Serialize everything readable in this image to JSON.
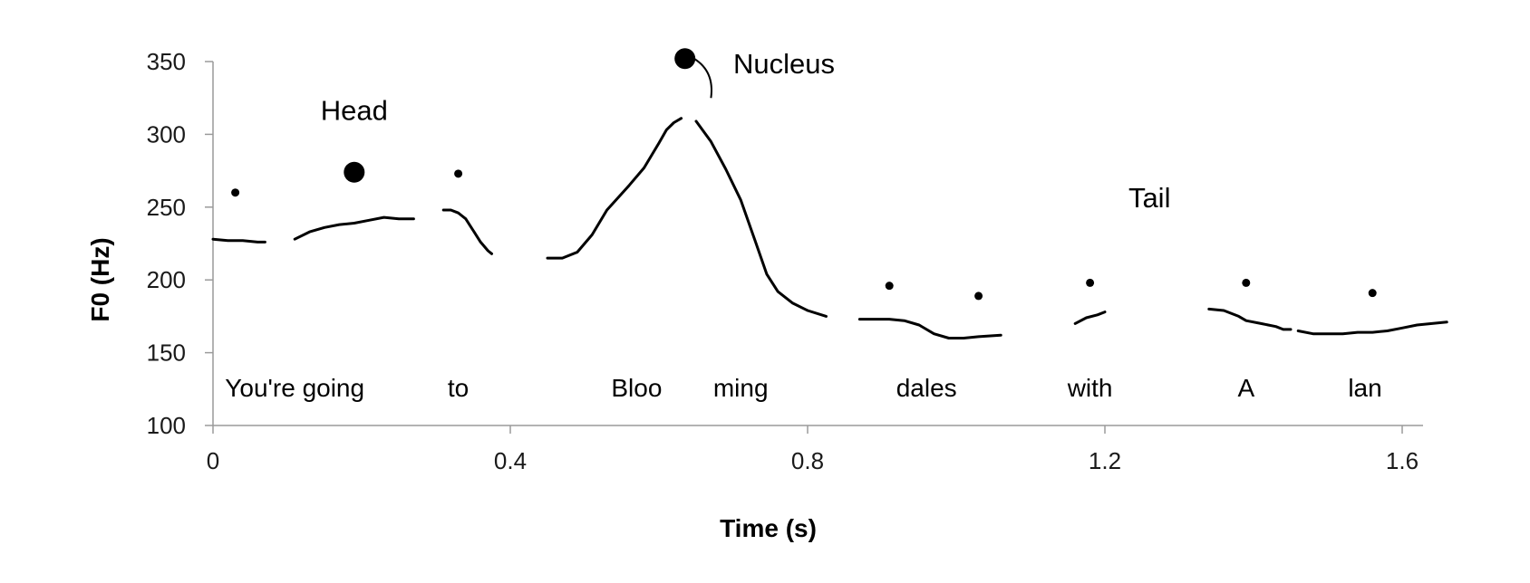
{
  "chart_data": {
    "type": "line",
    "title": "",
    "xlabel": "Time (s)",
    "ylabel": "F0 (Hz)",
    "xlim": [
      0,
      1.7
    ],
    "ylim": [
      100,
      350
    ],
    "x_ticks": [
      0,
      0.4,
      0.8,
      1.2,
      1.6
    ],
    "x_tick_labels": [
      "0",
      "0.4",
      "0.8",
      "1.2",
      "1.6"
    ],
    "y_ticks": [
      100,
      150,
      200,
      250,
      300,
      350
    ],
    "y_tick_labels": [
      "100",
      "150",
      "200",
      "250",
      "300",
      "350"
    ],
    "grid": false,
    "legend": "none",
    "color": "#000000",
    "series": [
      {
        "points": [
          [
            0.0,
            228
          ],
          [
            0.02,
            227
          ],
          [
            0.04,
            227
          ],
          [
            0.06,
            226
          ],
          [
            0.07,
            226
          ]
        ]
      },
      {
        "points": [
          [
            0.11,
            228
          ],
          [
            0.13,
            233
          ],
          [
            0.15,
            236
          ],
          [
            0.17,
            238
          ],
          [
            0.19,
            239
          ],
          [
            0.21,
            241
          ],
          [
            0.23,
            243
          ],
          [
            0.25,
            242
          ],
          [
            0.27,
            242
          ]
        ]
      },
      {
        "points": [
          [
            0.31,
            248
          ],
          [
            0.32,
            248
          ],
          [
            0.33,
            246
          ],
          [
            0.34,
            242
          ],
          [
            0.35,
            234
          ],
          [
            0.36,
            226
          ],
          [
            0.37,
            220
          ],
          [
            0.375,
            218
          ]
        ]
      },
      {
        "points": [
          [
            0.45,
            215
          ],
          [
            0.47,
            215
          ],
          [
            0.49,
            219
          ],
          [
            0.51,
            231
          ],
          [
            0.53,
            248
          ],
          [
            0.56,
            265
          ],
          [
            0.58,
            277
          ],
          [
            0.6,
            294
          ],
          [
            0.61,
            303
          ],
          [
            0.62,
            308
          ],
          [
            0.63,
            311
          ]
        ]
      },
      {
        "points": [
          [
            0.65,
            309
          ],
          [
            0.67,
            295
          ],
          [
            0.69,
            276
          ],
          [
            0.71,
            255
          ],
          [
            0.73,
            226
          ],
          [
            0.745,
            204
          ],
          [
            0.76,
            192
          ],
          [
            0.78,
            184
          ],
          [
            0.8,
            179
          ],
          [
            0.825,
            175
          ]
        ]
      },
      {
        "points": [
          [
            0.87,
            173
          ],
          [
            0.89,
            173
          ],
          [
            0.91,
            173
          ],
          [
            0.93,
            172
          ],
          [
            0.95,
            169
          ],
          [
            0.97,
            163
          ],
          [
            0.99,
            160
          ],
          [
            1.01,
            160
          ],
          [
            1.03,
            161
          ],
          [
            1.06,
            162
          ]
        ]
      },
      {
        "points": [
          [
            1.16,
            170
          ],
          [
            1.175,
            174
          ],
          [
            1.19,
            176
          ],
          [
            1.2,
            178
          ]
        ]
      },
      {
        "points": [
          [
            1.34,
            180
          ],
          [
            1.36,
            179
          ],
          [
            1.38,
            175
          ],
          [
            1.39,
            172
          ],
          [
            1.41,
            170
          ],
          [
            1.43,
            168
          ],
          [
            1.44,
            166
          ],
          [
            1.45,
            166
          ]
        ]
      },
      {
        "points": [
          [
            1.46,
            165
          ],
          [
            1.48,
            163
          ],
          [
            1.5,
            163
          ],
          [
            1.52,
            163
          ],
          [
            1.54,
            164
          ],
          [
            1.56,
            164
          ],
          [
            1.58,
            165
          ],
          [
            1.6,
            167
          ],
          [
            1.62,
            169
          ],
          [
            1.64,
            170
          ],
          [
            1.66,
            171
          ]
        ]
      }
    ],
    "syllable_labels": [
      {
        "text": "You're going",
        "x": 0.11,
        "y": 120
      },
      {
        "text": "to",
        "x": 0.33,
        "y": 120
      },
      {
        "text": "Bloo",
        "x": 0.57,
        "y": 120
      },
      {
        "text": "ming",
        "x": 0.71,
        "y": 120
      },
      {
        "text": "dales",
        "x": 0.96,
        "y": 120
      },
      {
        "text": "with",
        "x": 1.18,
        "y": 120
      },
      {
        "text": "A",
        "x": 1.39,
        "y": 120
      },
      {
        "text": "lan",
        "x": 1.55,
        "y": 120
      }
    ],
    "stress_dots": [
      {
        "x": 0.03,
        "y": 260,
        "prominence": "small"
      },
      {
        "x": 0.19,
        "y": 274,
        "prominence": "large"
      },
      {
        "x": 0.33,
        "y": 273,
        "prominence": "small"
      },
      {
        "x": 0.635,
        "y": 352,
        "prominence": "large"
      },
      {
        "x": 0.91,
        "y": 196,
        "prominence": "small"
      },
      {
        "x": 1.03,
        "y": 189,
        "prominence": "small"
      },
      {
        "x": 1.18,
        "y": 198,
        "prominence": "small"
      },
      {
        "x": 1.39,
        "y": 198,
        "prominence": "small"
      },
      {
        "x": 1.56,
        "y": 191,
        "prominence": "small"
      }
    ],
    "annotations": [
      {
        "text": "Head",
        "x": 0.19,
        "y": 310
      },
      {
        "text": "Nucleus",
        "x": 0.7,
        "y": 342
      },
      {
        "text": "Tail",
        "x": 1.26,
        "y": 250
      }
    ],
    "nucleus_connector": {
      "from": [
        0.635,
        352
      ],
      "to": [
        0.67,
        325
      ]
    }
  }
}
